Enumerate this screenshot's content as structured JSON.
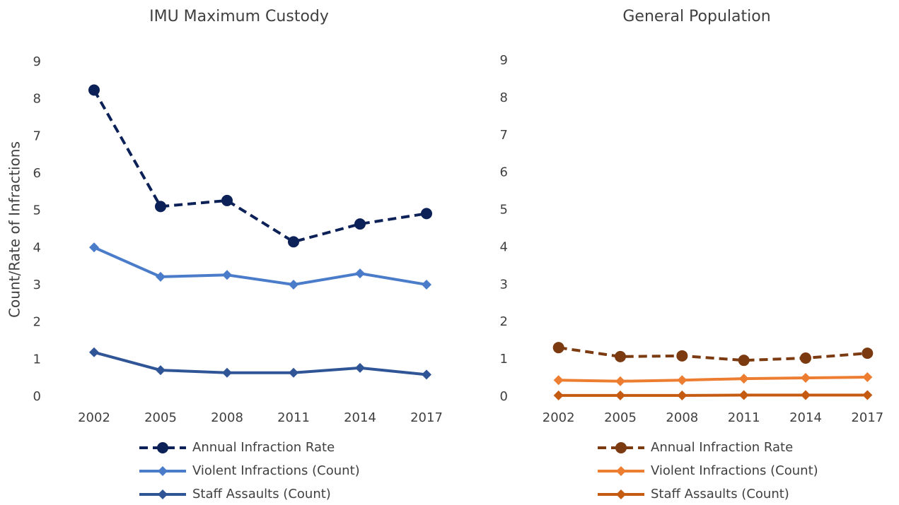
{
  "chart_data": [
    {
      "type": "line",
      "title": "IMU Maximum Custody",
      "y_label": "Count/Rate of Infractions",
      "categories": [
        "2002",
        "2005",
        "2008",
        "2011",
        "2014",
        "2017"
      ],
      "ylim": [
        0,
        9
      ],
      "yticks": [
        0,
        1,
        2,
        3,
        4,
        5,
        6,
        7,
        8,
        9
      ],
      "grid": false,
      "series": [
        {
          "name": "Annual Infraction Rate",
          "color": "#0c2157",
          "line_style": "dashed",
          "marker": "circle",
          "values": [
            8.25,
            5.12,
            5.28,
            4.17,
            4.65,
            4.93
          ]
        },
        {
          "name": "Violent Infractions (Count)",
          "color": "#4a7cc9",
          "line_style": "solid",
          "marker": "diamond",
          "values": [
            4.02,
            3.23,
            3.28,
            3.02,
            3.32,
            3.02
          ]
        },
        {
          "name": "Staff Assaults (Count)",
          "color": "#2f5597",
          "line_style": "solid",
          "marker": "diamond",
          "values": [
            1.2,
            0.72,
            0.65,
            0.65,
            0.78,
            0.6
          ]
        }
      ]
    },
    {
      "type": "line",
      "title": "General Population",
      "categories": [
        "2002",
        "2005",
        "2008",
        "2011",
        "2014",
        "2017"
      ],
      "ylim": [
        0,
        9
      ],
      "yticks": [
        0,
        1,
        2,
        3,
        4,
        5,
        6,
        7,
        8,
        9
      ],
      "grid": false,
      "series": [
        {
          "name": "Annual Infraction Rate",
          "color": "#7b3a10",
          "line_style": "dashed",
          "marker": "circle",
          "values": [
            1.32,
            1.08,
            1.1,
            0.98,
            1.04,
            1.17
          ]
        },
        {
          "name": "Violent Infractions (Count)",
          "color": "#ed7d31",
          "line_style": "solid",
          "marker": "diamond",
          "values": [
            0.45,
            0.42,
            0.45,
            0.49,
            0.51,
            0.53
          ]
        },
        {
          "name": "Staff Assaults (Count)",
          "color": "#c55a11",
          "line_style": "solid",
          "marker": "diamond",
          "values": [
            0.04,
            0.04,
            0.04,
            0.05,
            0.05,
            0.05
          ]
        }
      ]
    }
  ]
}
